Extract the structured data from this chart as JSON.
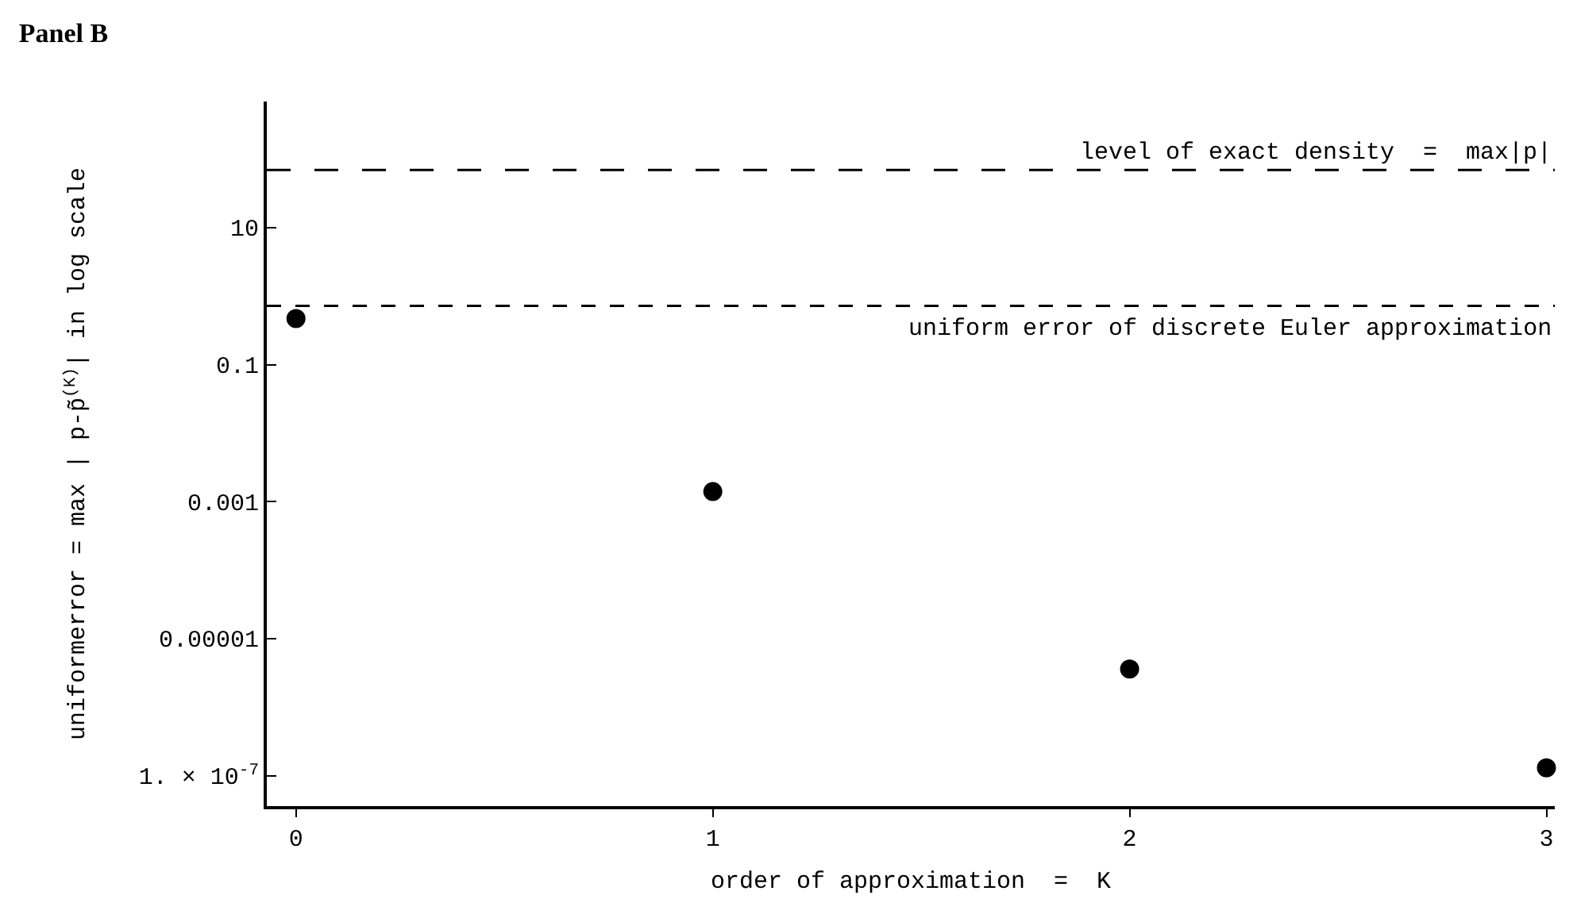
{
  "chart_data": {
    "type": "scatter",
    "title": "Panel B",
    "xlabel": "order of approximation  =  K",
    "ylabel": "uniformerror = max | p-p̃$^{(K)}$| in log scale",
    "x": [
      0,
      1,
      2,
      3
    ],
    "series": [
      {
        "color": "#000000",
        "values": [
          0.47,
          0.0014,
          3.6e-06,
          1.3e-07
        ]
      }
    ],
    "marker": "circle",
    "log": true,
    "grid": false,
    "xlim": [
      -0.07,
      3.02
    ],
    "xticks": [
      0,
      1,
      2,
      3
    ],
    "ylim": [
      3.6e-08,
      690
    ],
    "yticks": [
      10,
      0.1,
      0.001,
      {
        "value": 1e-05,
        "label": "0.00001"
      },
      {
        "value": 1e-07,
        "label": "1. × 10$^{-7}$"
      }
    ],
    "ref_lines": [
      {
        "axis": "y",
        "value": 69,
        "label": "level of exact density  =  max|p|",
        "line_style": "dashed",
        "color": "#000000"
      },
      {
        "axis": "y",
        "value": 0.72,
        "label": "uniform error of discrete Euler approximation",
        "line_style": "dotted",
        "color": "#000000"
      }
    ]
  }
}
